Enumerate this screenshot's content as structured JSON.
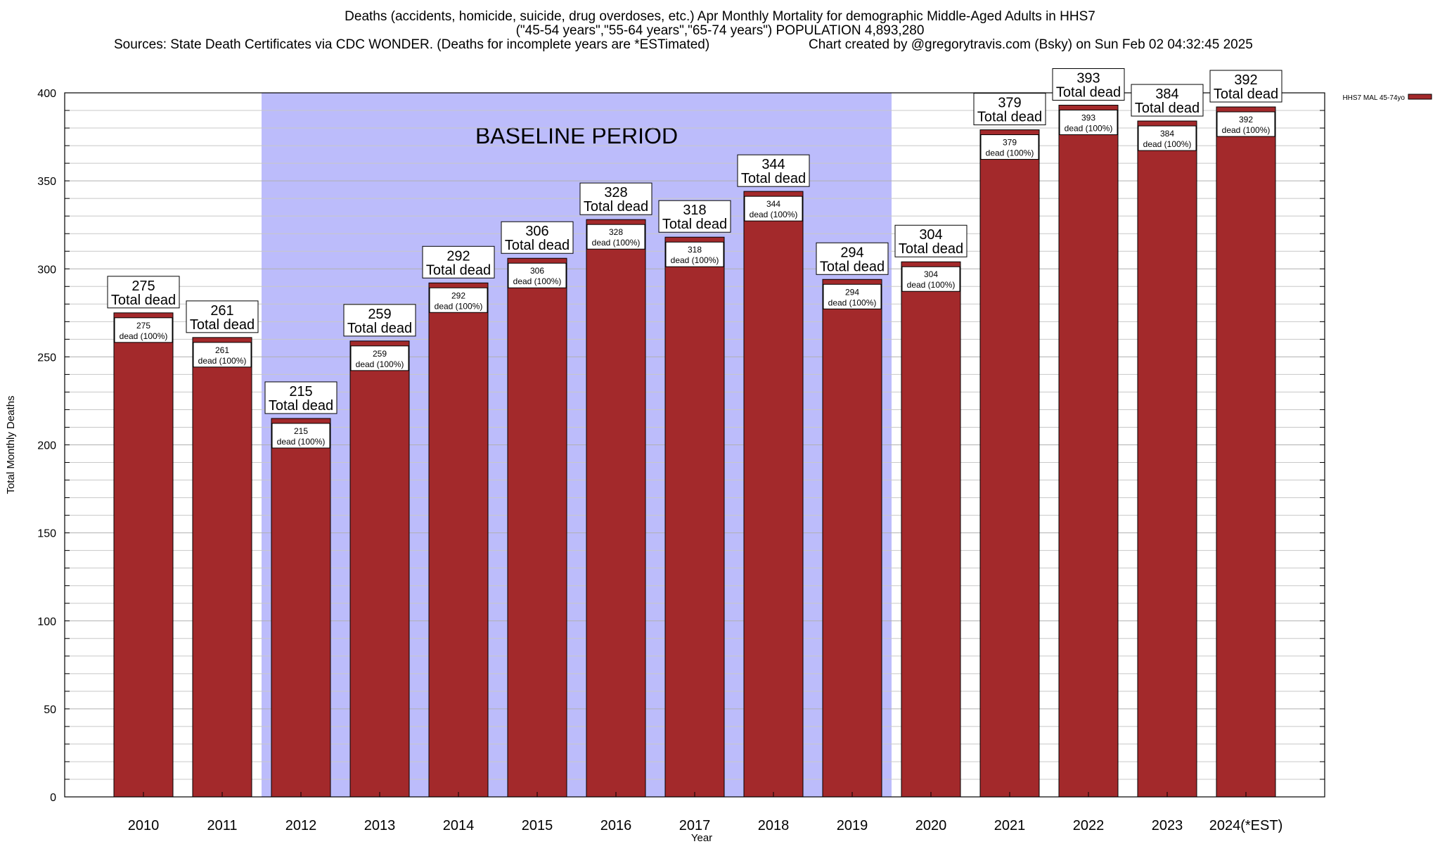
{
  "header": {
    "title_line1": "Deaths (accidents, homicide, suicide, drug overdoses, etc.) Apr Monthly Mortality for demographic Middle-Aged Adults in HHS7",
    "title_line2": "(\"45-54 years\",\"55-64 years\",\"65-74 years\") POPULATION 4,893,280",
    "sources": "Sources: State Death Certificates via CDC WONDER. (Deaths for incomplete years are *ESTimated)",
    "credit": "Chart created by @gregorytravis.com (Bsky) on Sun Feb 02 04:32:45 2025"
  },
  "chart_data": {
    "type": "bar",
    "title": "Deaths (accidents, homicide, suicide, drug overdoses, etc.) Apr Monthly Mortality for demographic Middle-Aged Adults in HHS7",
    "xlabel": "Year",
    "ylabel": "Total Monthly Deaths",
    "ylim": [
      0,
      400
    ],
    "yticks": [
      0,
      50,
      100,
      150,
      200,
      250,
      300,
      350,
      400
    ],
    "categories": [
      "2010",
      "2011",
      "2012",
      "2013",
      "2014",
      "2015",
      "2016",
      "2017",
      "2018",
      "2019",
      "2020",
      "2021",
      "2022",
      "2023",
      "2024(*EST)"
    ],
    "series": [
      {
        "name": "HHS7 MAL 45-74yo",
        "values": [
          275,
          261,
          215,
          259,
          292,
          306,
          328,
          318,
          344,
          294,
          304,
          379,
          393,
          384,
          392
        ]
      }
    ],
    "label_total_suffix": "Total dead",
    "label_inner_suffix": "dead (100%)",
    "baseline": {
      "label": "BASELINE PERIOD",
      "from": "2012",
      "to": "2019"
    },
    "grid": true,
    "legend": "top-right",
    "colors": {
      "bar": "#a3292b",
      "baseline": "#bcbcfb",
      "grid": "#c8c8c8"
    }
  }
}
